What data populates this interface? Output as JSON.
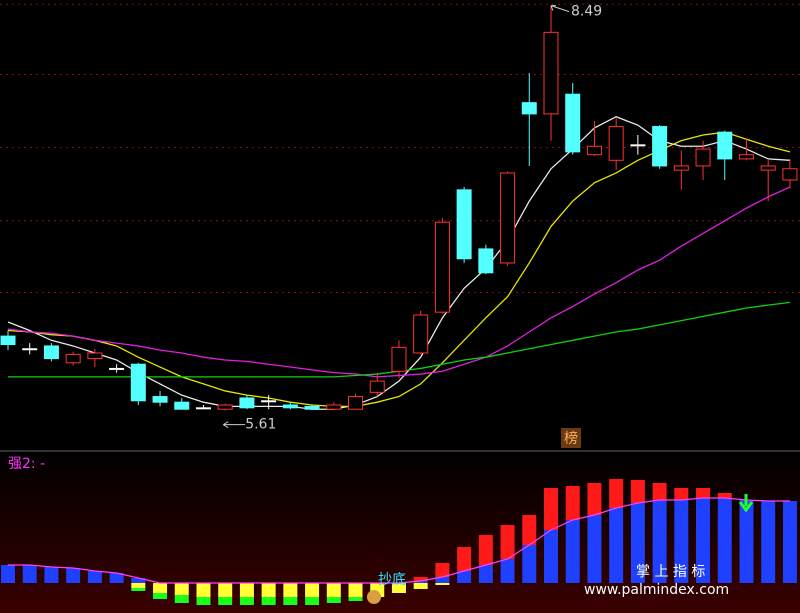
{
  "chart_data": [
    {
      "type": "candlestick",
      "ylim": [
        5.33,
        8.53
      ],
      "grid_lines": [
        8.5,
        8.0,
        7.48,
        6.96,
        6.45
      ],
      "up_color": "#ff3232",
      "down_color": "#54ffff",
      "flat_color": "#ffffff",
      "open": [
        6.14,
        6.05,
        6.07,
        5.95,
        5.98,
        5.91,
        5.94,
        5.71,
        5.67,
        5.63,
        5.62,
        5.7,
        5.68,
        5.65,
        5.64,
        5.62,
        5.62,
        5.74,
        5.89,
        6.02,
        6.31,
        7.18,
        6.76,
        6.66,
        7.8,
        7.72,
        7.86,
        7.43,
        7.39,
        7.5,
        7.63,
        7.32,
        7.35,
        7.59,
        7.4,
        7.32,
        7.25
      ],
      "high": [
        6.18,
        6.09,
        6.09,
        6.03,
        6.05,
        5.94,
        5.95,
        5.75,
        5.7,
        5.65,
        5.66,
        5.72,
        5.72,
        5.67,
        5.65,
        5.67,
        5.73,
        5.88,
        6.11,
        6.32,
        6.98,
        7.2,
        6.79,
        7.31,
        8.01,
        8.49,
        7.94,
        7.67,
        7.69,
        7.57,
        7.64,
        7.46,
        7.53,
        7.6,
        7.54,
        7.39,
        7.4
      ],
      "low": [
        6.04,
        6.01,
        5.96,
        5.93,
        5.92,
        5.88,
        5.65,
        5.64,
        5.62,
        5.62,
        5.61,
        5.62,
        5.62,
        5.62,
        5.62,
        5.62,
        5.62,
        5.71,
        5.84,
        6.01,
        6.3,
        6.66,
        6.58,
        6.64,
        7.35,
        7.53,
        7.43,
        7.42,
        7.32,
        7.43,
        7.33,
        7.18,
        7.25,
        7.25,
        7.39,
        7.1,
        7.19
      ],
      "close": [
        6.08,
        6.05,
        5.98,
        6.01,
        6.02,
        5.91,
        5.68,
        5.67,
        5.62,
        5.63,
        5.65,
        5.63,
        5.68,
        5.63,
        5.62,
        5.65,
        5.71,
        5.82,
        6.06,
        6.29,
        6.95,
        6.69,
        6.59,
        7.3,
        7.72,
        8.3,
        7.45,
        7.49,
        7.63,
        7.5,
        7.35,
        7.35,
        7.47,
        7.4,
        7.43,
        7.35,
        7.33
      ],
      "series": [
        {
          "color": "#e8e8e8",
          "values": [
            6.24,
            6.18,
            6.11,
            6.07,
            6.02,
            5.97,
            5.88,
            5.8,
            5.72,
            5.67,
            5.64,
            5.64,
            5.64,
            5.64,
            5.62,
            5.62,
            5.65,
            5.71,
            5.82,
            5.99,
            6.27,
            6.48,
            6.62,
            6.82,
            7.1,
            7.33,
            7.47,
            7.62,
            7.7,
            7.64,
            7.53,
            7.49,
            7.49,
            7.53,
            7.47,
            7.4,
            7.39
          ]
        },
        {
          "color": "#e6e600",
          "values": [
            6.18,
            6.17,
            6.15,
            6.14,
            6.11,
            6.07,
            5.99,
            5.92,
            5.85,
            5.8,
            5.75,
            5.72,
            5.7,
            5.67,
            5.65,
            5.64,
            5.64,
            5.67,
            5.71,
            5.8,
            5.95,
            6.11,
            6.27,
            6.42,
            6.66,
            6.92,
            7.1,
            7.23,
            7.3,
            7.39,
            7.46,
            7.53,
            7.57,
            7.59,
            7.54,
            7.49,
            7.45
          ]
        },
        {
          "color": "#e020e0",
          "values": [
            6.19,
            6.17,
            6.16,
            6.14,
            6.11,
            6.09,
            6.07,
            6.04,
            6.02,
            5.99,
            5.97,
            5.96,
            5.94,
            5.92,
            5.9,
            5.88,
            5.87,
            5.85,
            5.86,
            5.87,
            5.89,
            5.94,
            5.99,
            6.07,
            6.17,
            6.27,
            6.35,
            6.44,
            6.52,
            6.61,
            6.68,
            6.78,
            6.87,
            6.96,
            7.05,
            7.13,
            7.2
          ]
        },
        {
          "color": "#10d010",
          "values": [
            5.85,
            5.85,
            5.85,
            5.85,
            5.85,
            5.85,
            5.85,
            5.85,
            5.85,
            5.85,
            5.85,
            5.85,
            5.85,
            5.85,
            5.85,
            5.85,
            5.86,
            5.87,
            5.89,
            5.91,
            5.94,
            5.97,
            5.99,
            6.02,
            6.05,
            6.08,
            6.11,
            6.14,
            6.17,
            6.19,
            6.22,
            6.25,
            6.28,
            6.31,
            6.34,
            6.36,
            6.38
          ]
        }
      ],
      "annotations": [
        "8.49",
        "5.61",
        "榜"
      ]
    },
    {
      "type": "bar",
      "title": "强2: -",
      "ylim": [
        -30,
        123
      ],
      "annotation": "抄底",
      "series": [
        {
          "color": "#2040ff",
          "values": [
            18,
            18,
            16,
            15,
            12,
            10,
            5,
            0,
            0,
            0,
            0,
            0,
            0,
            0,
            0,
            0,
            0,
            0,
            0,
            2,
            6,
            12,
            18,
            24,
            38,
            53,
            63,
            68,
            75,
            80,
            83,
            83,
            85,
            85,
            83,
            82,
            82
          ]
        },
        {
          "color": "#ff1a1a",
          "values": [
            0,
            0,
            0,
            0,
            0,
            0,
            0,
            0,
            0,
            0,
            0,
            0,
            0,
            0,
            0,
            0,
            0,
            0,
            0,
            4,
            14,
            24,
            30,
            34,
            30,
            42,
            34,
            32,
            29,
            23,
            17,
            12,
            10,
            5,
            0,
            0,
            0
          ]
        },
        {
          "color": "#ffff33",
          "values": [
            0,
            0,
            0,
            0,
            0,
            0,
            -5,
            -10,
            -12,
            -14,
            -14,
            -14,
            -14,
            -14,
            -14,
            -14,
            -14,
            -14,
            -10,
            -6,
            -2,
            0,
            0,
            0,
            0,
            0,
            0,
            0,
            0,
            0,
            0,
            0,
            0,
            0,
            0,
            0,
            0
          ]
        },
        {
          "color": "#1aff1a",
          "values": [
            0,
            0,
            0,
            0,
            0,
            0,
            -3,
            -6,
            -8,
            -8,
            -8,
            -8,
            -8,
            -8,
            -8,
            -6,
            -4,
            0,
            0,
            0,
            0,
            0,
            0,
            0,
            0,
            0,
            0,
            0,
            0,
            0,
            0,
            0,
            0,
            0,
            0,
            0,
            0
          ]
        }
      ]
    }
  ],
  "watermark": {
    "title": "掌 上 指 标",
    "url": "www.palmindex.com"
  }
}
